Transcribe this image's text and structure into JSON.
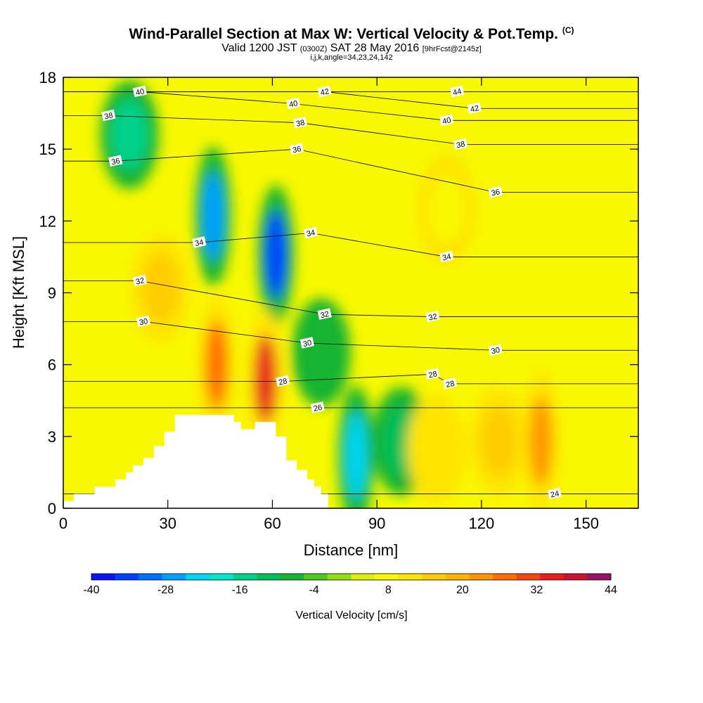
{
  "header": {
    "title": "Wind-Parallel Section at Max W: Vertical Velocity & Pot.Temp.",
    "copyright": "(C)",
    "valid_prefix": "Valid 1200 JST",
    "valid_utc": "(0300Z)",
    "valid_date": "SAT 28 May 2016",
    "forecast": "[9hrFcst@2145z]",
    "indices": "i,j,k,angle=34,23,24,142"
  },
  "chart_data": {
    "type": "heatmap",
    "xlabel": "Distance [nm]",
    "ylabel": "Height [Kft MSL]",
    "xlim": [
      0,
      165
    ],
    "ylim": [
      0,
      18
    ],
    "x_ticks": [
      0,
      30,
      60,
      90,
      120,
      150
    ],
    "y_ticks": [
      0,
      3,
      6,
      9,
      12,
      15,
      18
    ],
    "colorbar": {
      "label": "Vertical Velocity [cm/s]",
      "ticks": [
        -40,
        -28,
        -16,
        -4,
        8,
        20,
        32,
        44
      ],
      "levels": [
        -40,
        -36,
        -32,
        -28,
        -24,
        -20,
        -16,
        -12,
        -8,
        -4,
        0,
        4,
        8,
        12,
        16,
        20,
        24,
        28,
        32,
        36,
        40,
        44
      ],
      "colors": [
        "#0a14f0",
        "#0040ff",
        "#0070ff",
        "#00a0ff",
        "#00d4f0",
        "#00e6c8",
        "#00d28c",
        "#00be5a",
        "#14b432",
        "#50c81e",
        "#96dc14",
        "#dcf00a",
        "#f8f800",
        "#ffe400",
        "#ffcc00",
        "#ffb400",
        "#ff9600",
        "#ff6e00",
        "#f04614",
        "#e61e1e",
        "#c81432",
        "#961464"
      ]
    },
    "vertical_velocity_features": [
      {
        "x": 43,
        "y": 12.2,
        "value": -28
      },
      {
        "x": 61,
        "y": 10.6,
        "value": -36
      },
      {
        "x": 19,
        "y": 15.6,
        "value": -16
      },
      {
        "x": 84,
        "y": 2.2,
        "value": -24
      },
      {
        "x": 97,
        "y": 2.8,
        "value": -12
      },
      {
        "x": 74,
        "y": 6.5,
        "value": -8
      },
      {
        "x": 44,
        "y": 6.0,
        "value": 30
      },
      {
        "x": 58,
        "y": 5.4,
        "value": 36
      },
      {
        "x": 137,
        "y": 2.8,
        "value": 24
      },
      {
        "x": 125,
        "y": 2.8,
        "value": 16
      },
      {
        "x": 107,
        "y": 2.5,
        "value": 14
      },
      {
        "x": 110,
        "y": 12.5,
        "value": 10
      },
      {
        "x": 28,
        "y": 9.2,
        "value": 18
      }
    ],
    "theta_contour_labels": [
      {
        "value": "40",
        "x": 22,
        "y": 17.4
      },
      {
        "value": "42",
        "x": 75,
        "y": 17.4
      },
      {
        "value": "44",
        "x": 113,
        "y": 17.4
      },
      {
        "value": "42",
        "x": 118,
        "y": 16.7
      },
      {
        "value": "40",
        "x": 66,
        "y": 16.9
      },
      {
        "value": "40",
        "x": 110,
        "y": 16.2
      },
      {
        "value": "38",
        "x": 13,
        "y": 16.4
      },
      {
        "value": "38",
        "x": 68,
        "y": 16.1
      },
      {
        "value": "38",
        "x": 114,
        "y": 15.2
      },
      {
        "value": "36",
        "x": 67,
        "y": 15.0
      },
      {
        "value": "36",
        "x": 15,
        "y": 14.5
      },
      {
        "value": "36",
        "x": 124,
        "y": 13.2
      },
      {
        "value": "34",
        "x": 39,
        "y": 11.1
      },
      {
        "value": "34",
        "x": 71,
        "y": 11.5
      },
      {
        "value": "34",
        "x": 110,
        "y": 10.5
      },
      {
        "value": "32",
        "x": 22,
        "y": 9.5
      },
      {
        "value": "32",
        "x": 75,
        "y": 8.1
      },
      {
        "value": "32",
        "x": 106,
        "y": 8.0
      },
      {
        "value": "30",
        "x": 23,
        "y": 7.8
      },
      {
        "value": "30",
        "x": 70,
        "y": 6.9
      },
      {
        "value": "30",
        "x": 124,
        "y": 6.6
      },
      {
        "value": "28",
        "x": 106,
        "y": 5.6
      },
      {
        "value": "28",
        "x": 111,
        "y": 5.2
      },
      {
        "value": "28",
        "x": 63,
        "y": 5.3
      },
      {
        "value": "26",
        "x": 73,
        "y": 4.2
      },
      {
        "value": "24",
        "x": 141,
        "y": 0.6
      }
    ],
    "terrain": [
      [
        0,
        0
      ],
      [
        0,
        0.3
      ],
      [
        3,
        0.3
      ],
      [
        3,
        0.6
      ],
      [
        9,
        0.6
      ],
      [
        9,
        0.9
      ],
      [
        15,
        0.9
      ],
      [
        15,
        1.2
      ],
      [
        18,
        1.2
      ],
      [
        18,
        1.5
      ],
      [
        20,
        1.5
      ],
      [
        20,
        1.8
      ],
      [
        23,
        1.8
      ],
      [
        23,
        2.1
      ],
      [
        26,
        2.1
      ],
      [
        26,
        2.6
      ],
      [
        29,
        2.6
      ],
      [
        29,
        3.2
      ],
      [
        32,
        3.2
      ],
      [
        32,
        3.9
      ],
      [
        49,
        3.9
      ],
      [
        49,
        3.6
      ],
      [
        51,
        3.6
      ],
      [
        51,
        3.3
      ],
      [
        55,
        3.3
      ],
      [
        55,
        3.6
      ],
      [
        61,
        3.6
      ],
      [
        61,
        3.0
      ],
      [
        64,
        3.0
      ],
      [
        64,
        2.0
      ],
      [
        67,
        2.0
      ],
      [
        67,
        1.6
      ],
      [
        70,
        1.6
      ],
      [
        70,
        1.2
      ],
      [
        72,
        1.2
      ],
      [
        72,
        0.9
      ],
      [
        74,
        0.9
      ],
      [
        74,
        0.6
      ],
      [
        76,
        0.6
      ],
      [
        76,
        0
      ],
      [
        0,
        0
      ]
    ]
  }
}
